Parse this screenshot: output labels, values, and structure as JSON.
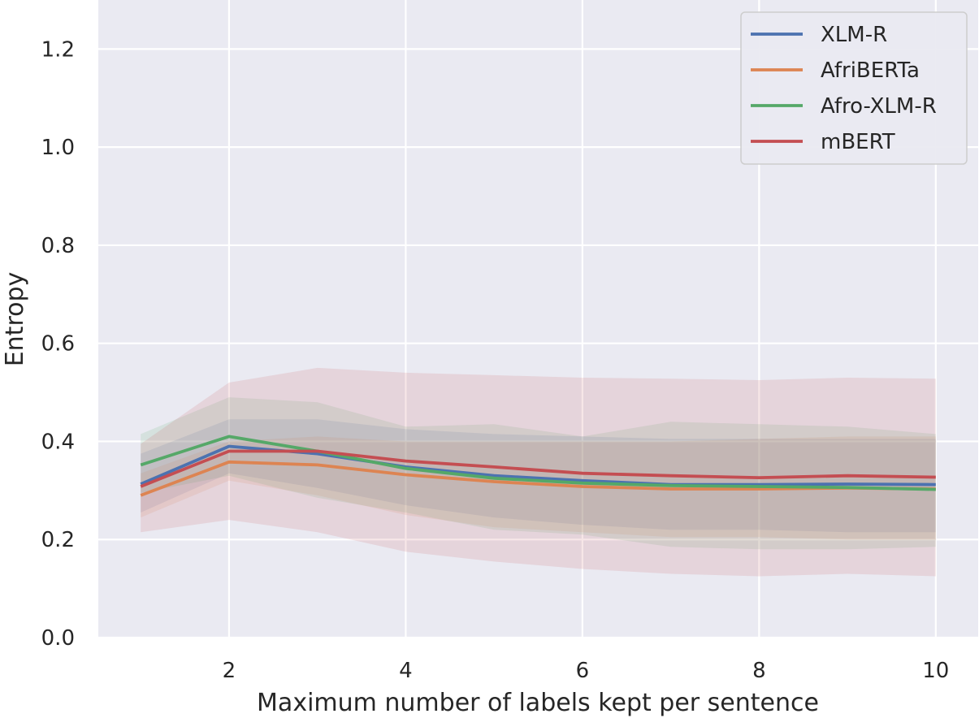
{
  "chart_data": {
    "type": "line",
    "title": "",
    "xlabel": "Maximum number of labels kept per sentence",
    "ylabel": "Entropy",
    "xlim": [
      0.52,
      10.48
    ],
    "ylim": [
      0.0,
      1.3
    ],
    "xticks": [
      "2",
      "4",
      "6",
      "8",
      "10"
    ],
    "xtick_values": [
      2,
      4,
      6,
      8,
      10
    ],
    "yticks": [
      "0.0",
      "0.2",
      "0.4",
      "0.6",
      "0.8",
      "1.0",
      "1.2"
    ],
    "ytick_values": [
      0.0,
      0.2,
      0.4,
      0.6,
      0.8,
      1.0,
      1.2
    ],
    "grid": true,
    "legend_position": "top-right",
    "x": [
      1,
      2,
      3,
      4,
      5,
      6,
      7,
      8,
      9,
      10
    ],
    "series": [
      {
        "name": "XLM-R",
        "color": "#4c72b0",
        "values": [
          0.313,
          0.39,
          0.375,
          0.348,
          0.33,
          0.32,
          0.312,
          0.312,
          0.313,
          0.312
        ],
        "lower": [
          0.255,
          0.335,
          0.305,
          0.27,
          0.245,
          0.23,
          0.22,
          0.22,
          0.215,
          0.215
        ],
        "upper": [
          0.375,
          0.445,
          0.445,
          0.425,
          0.415,
          0.41,
          0.405,
          0.405,
          0.405,
          0.405
        ]
      },
      {
        "name": "AfriBERTa",
        "color": "#dd8452",
        "values": [
          0.29,
          0.358,
          0.352,
          0.332,
          0.318,
          0.308,
          0.303,
          0.303,
          0.305,
          0.303
        ],
        "lower": [
          0.245,
          0.32,
          0.29,
          0.25,
          0.225,
          0.215,
          0.205,
          0.205,
          0.2,
          0.2
        ],
        "upper": [
          0.335,
          0.4,
          0.41,
          0.4,
          0.4,
          0.4,
          0.4,
          0.405,
          0.41,
          0.41
        ]
      },
      {
        "name": "Afro-XLM-R",
        "color": "#55a868",
        "values": [
          0.352,
          0.41,
          0.38,
          0.345,
          0.325,
          0.315,
          0.31,
          0.308,
          0.306,
          0.302
        ],
        "lower": [
          0.295,
          0.33,
          0.285,
          0.255,
          0.22,
          0.21,
          0.185,
          0.18,
          0.18,
          0.185
        ],
        "upper": [
          0.415,
          0.49,
          0.48,
          0.43,
          0.435,
          0.41,
          0.44,
          0.435,
          0.43,
          0.415
        ]
      },
      {
        "name": "mBERT",
        "color": "#c44e52",
        "values": [
          0.308,
          0.38,
          0.38,
          0.36,
          0.348,
          0.335,
          0.33,
          0.326,
          0.33,
          0.327
        ],
        "lower": [
          0.215,
          0.24,
          0.215,
          0.175,
          0.155,
          0.14,
          0.13,
          0.125,
          0.13,
          0.125
        ],
        "upper": [
          0.395,
          0.52,
          0.55,
          0.54,
          0.535,
          0.53,
          0.528,
          0.525,
          0.53,
          0.528
        ]
      }
    ]
  }
}
